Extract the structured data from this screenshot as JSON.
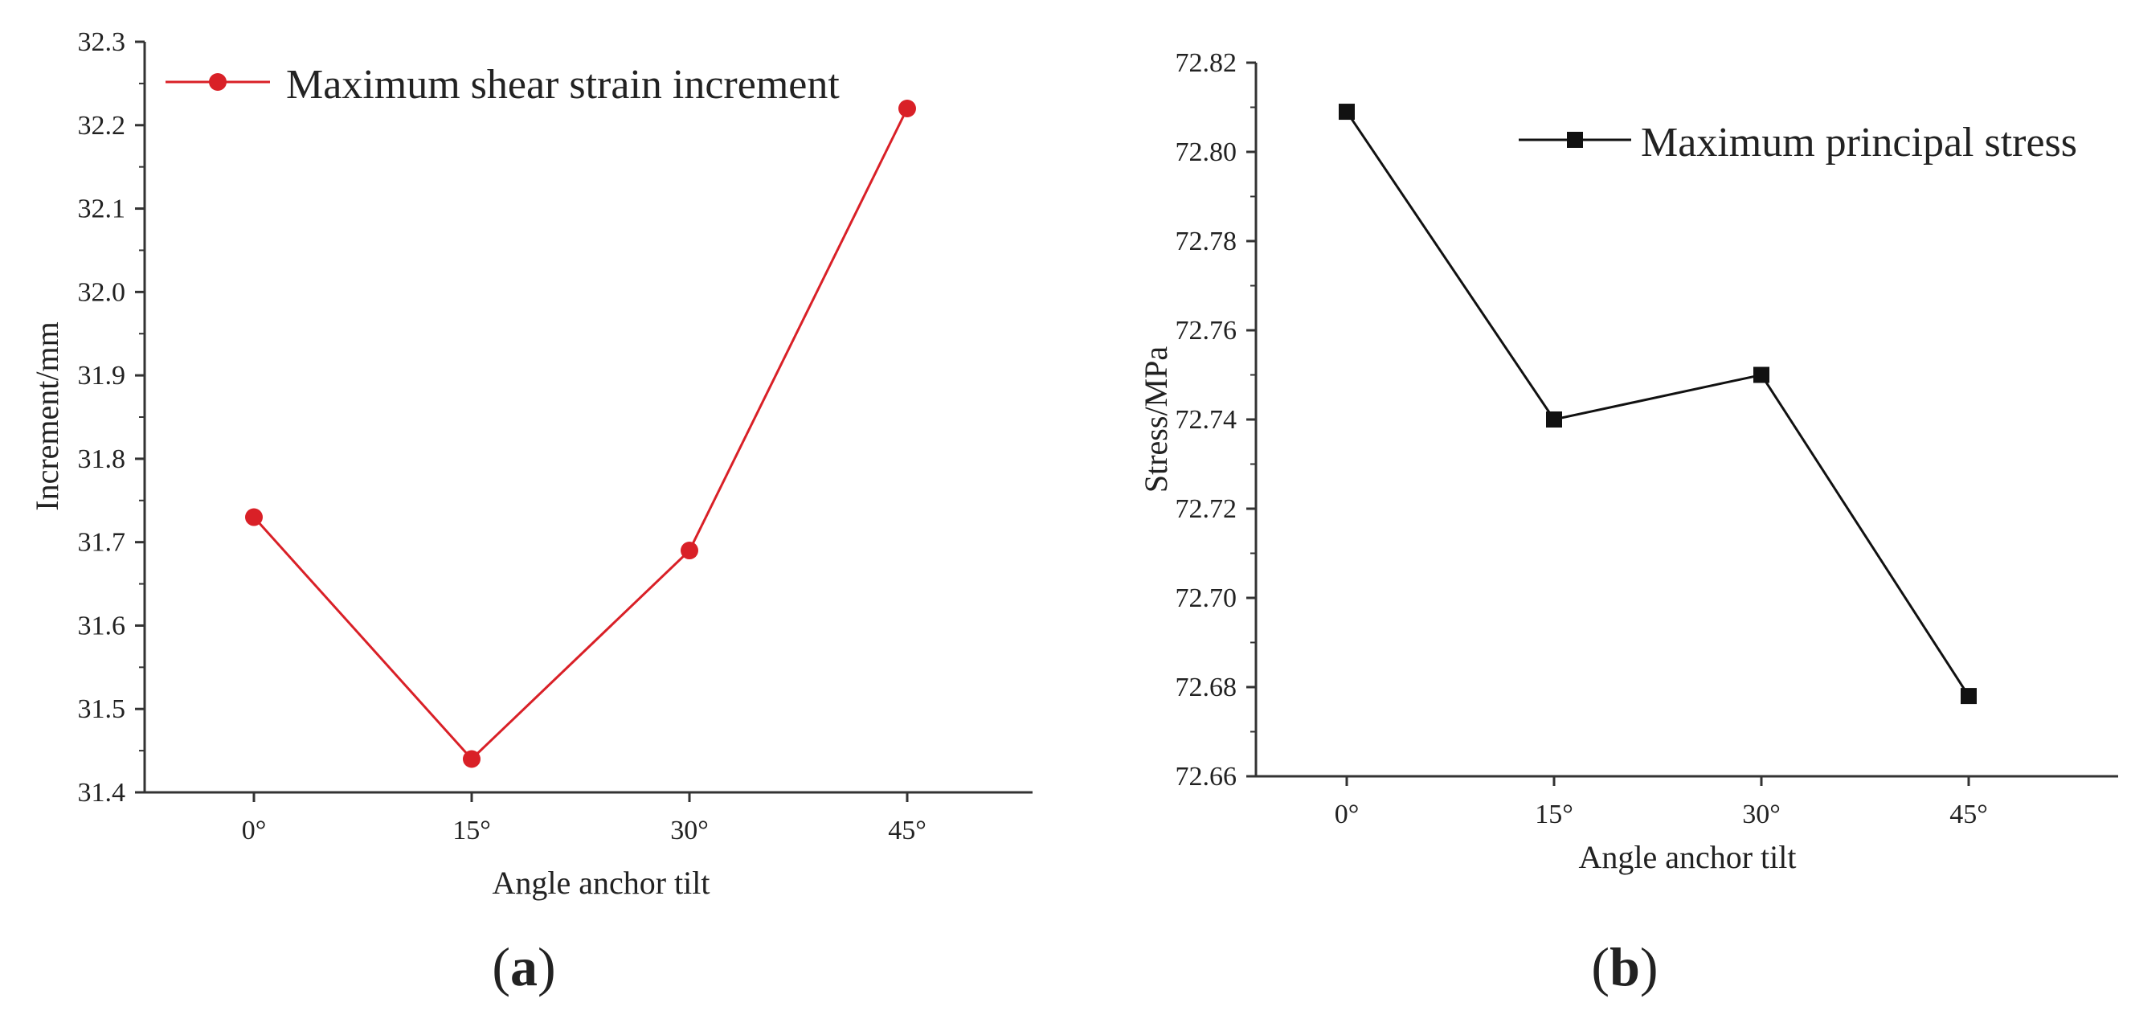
{
  "chart_data": [
    {
      "type": "line",
      "caption": "a",
      "categories": [
        "0°",
        "15°",
        "30°",
        "45°"
      ],
      "series": [
        {
          "name": "Maximum shear strain increment",
          "values": [
            31.73,
            31.44,
            31.69,
            32.22
          ],
          "color": "#d92027",
          "marker": "circle"
        }
      ],
      "xlabel": "Angle anchor tilt",
      "ylabel": "Increment/mm",
      "ylim": [
        31.4,
        32.3
      ],
      "yticks": [
        "31.4",
        "31.5",
        "31.6",
        "31.7",
        "31.8",
        "31.9",
        "32.0",
        "32.1",
        "32.2",
        "32.3"
      ],
      "grid": false,
      "legend_position": "top"
    },
    {
      "type": "line",
      "caption": "b",
      "categories": [
        "0°",
        "15°",
        "30°",
        "45°"
      ],
      "series": [
        {
          "name": "Maximum principal stress",
          "values": [
            72.809,
            72.74,
            72.75,
            72.678
          ],
          "color": "#111111",
          "marker": "square"
        }
      ],
      "xlabel": "Angle anchor tilt",
      "ylabel": "Stress/MPa",
      "ylim": [
        72.66,
        72.82
      ],
      "yticks": [
        "72.66",
        "72.68",
        "72.70",
        "72.72",
        "72.74",
        "72.76",
        "72.78",
        "72.80",
        "72.82"
      ],
      "grid": false,
      "legend_position": "top-right"
    }
  ]
}
